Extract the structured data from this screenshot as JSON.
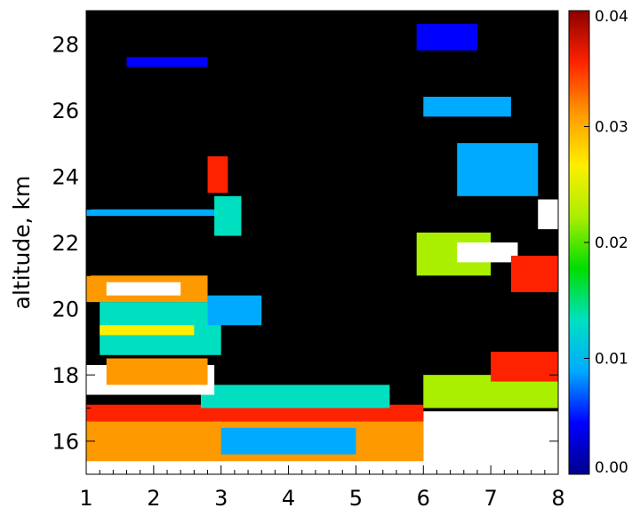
{
  "chart_data": {
    "type": "heatmap",
    "title": "",
    "xlabel": "",
    "ylabel": "altitude,  km",
    "xlim": [
      1,
      8
    ],
    "ylim": [
      15,
      29
    ],
    "x_ticks": [
      "1",
      "2",
      "3",
      "4",
      "5",
      "6",
      "7",
      "8"
    ],
    "y_ticks": [
      "16",
      "18",
      "20",
      "22",
      "24",
      "26",
      "28"
    ],
    "colorbar": {
      "range": [
        0.0,
        0.04
      ],
      "tick_labels": [
        "0.00",
        "0.01",
        "0.02",
        "0.03",
        "0.04"
      ],
      "colormap": "rainbow (dark blue to dark red)",
      "colors": [
        "#00008b",
        "#0000ff",
        "#00aaff",
        "#00e0c0",
        "#00dd00",
        "#aaee00",
        "#ffee00",
        "#ff9900",
        "#ff2200",
        "#8b0000"
      ]
    },
    "background_color": "#000000",
    "saturated_color": "#ffffff",
    "regions": [
      {
        "x": [
          1.0,
          8.0
        ],
        "y": [
          15.0,
          15.4
        ],
        "level": 0.04
      },
      {
        "x": [
          1.0,
          6.0
        ],
        "y": [
          15.4,
          16.6
        ],
        "level": 0.033
      },
      {
        "x": [
          3.0,
          5.0
        ],
        "y": [
          15.6,
          16.4
        ],
        "level": 0.008
      },
      {
        "x": [
          6.0,
          8.0
        ],
        "y": [
          15.3,
          16.9
        ],
        "level": 0.04
      },
      {
        "x": [
          1.0,
          6.0
        ],
        "y": [
          16.6,
          17.1
        ],
        "level": 0.036
      },
      {
        "x": [
          2.7,
          5.5
        ],
        "y": [
          17.0,
          17.7
        ],
        "level": 0.012
      },
      {
        "x": [
          1.0,
          2.9
        ],
        "y": [
          17.4,
          18.3
        ],
        "level": 0.04
      },
      {
        "x": [
          1.3,
          2.8
        ],
        "y": [
          17.7,
          18.5
        ],
        "level": 0.03
      },
      {
        "x": [
          6.0,
          8.0
        ],
        "y": [
          17.0,
          18.0
        ],
        "level": 0.02
      },
      {
        "x": [
          7.0,
          8.0
        ],
        "y": [
          17.8,
          18.7
        ],
        "level": 0.035
      },
      {
        "x": [
          1.2,
          3.0
        ],
        "y": [
          18.6,
          20.2
        ],
        "level": 0.012
      },
      {
        "x": [
          1.2,
          2.6
        ],
        "y": [
          19.2,
          19.5
        ],
        "level": 0.028
      },
      {
        "x": [
          1.0,
          2.8
        ],
        "y": [
          20.2,
          21.0
        ],
        "level": 0.03
      },
      {
        "x": [
          1.3,
          2.4
        ],
        "y": [
          20.4,
          20.8
        ],
        "level": 0.04
      },
      {
        "x": [
          2.8,
          3.6
        ],
        "y": [
          19.5,
          20.4
        ],
        "level": 0.01
      },
      {
        "x": [
          5.9,
          7.0
        ],
        "y": [
          21.0,
          22.3
        ],
        "level": 0.022
      },
      {
        "x": [
          6.5,
          7.4
        ],
        "y": [
          21.4,
          22.0
        ],
        "level": 0.04
      },
      {
        "x": [
          7.3,
          8.0
        ],
        "y": [
          20.5,
          21.6
        ],
        "level": 0.036
      },
      {
        "x": [
          7.7,
          8.0
        ],
        "y": [
          22.4,
          23.3
        ],
        "level": 0.04
      },
      {
        "x": [
          1.0,
          3.3
        ],
        "y": [
          22.8,
          23.0
        ],
        "level": 0.01
      },
      {
        "x": [
          2.8,
          3.1
        ],
        "y": [
          23.5,
          24.6
        ],
        "level": 0.035
      },
      {
        "x": [
          2.9,
          3.3
        ],
        "y": [
          22.2,
          23.4
        ],
        "level": 0.012
      },
      {
        "x": [
          6.5,
          7.7
        ],
        "y": [
          23.4,
          25.0
        ],
        "level": 0.008
      },
      {
        "x": [
          6.0,
          7.3
        ],
        "y": [
          25.8,
          26.4
        ],
        "level": 0.01
      },
      {
        "x": [
          1.6,
          2.8
        ],
        "y": [
          27.3,
          27.6
        ],
        "level": 0.006
      },
      {
        "x": [
          5.9,
          6.8
        ],
        "y": [
          27.8,
          28.6
        ],
        "level": 0.006
      }
    ]
  }
}
